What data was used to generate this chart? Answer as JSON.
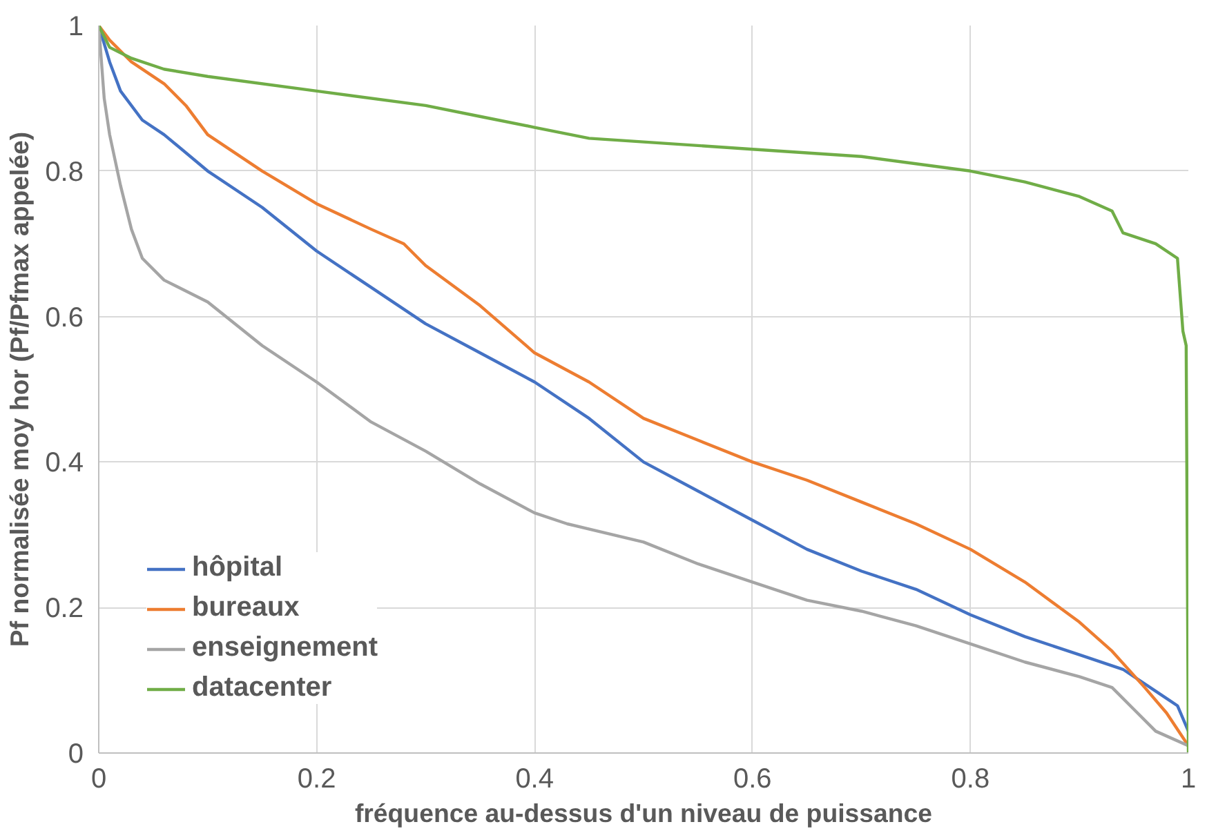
{
  "chart_data": {
    "type": "line",
    "xlabel": "fréquence au-dessus d'un niveau de puissance",
    "ylabel": "Pf normalisée moy hor (Pf/Pfmax appelée)",
    "xlim": [
      0,
      1
    ],
    "ylim": [
      0,
      1
    ],
    "xticks": [
      0,
      0.2,
      0.4,
      0.6,
      0.8,
      1
    ],
    "yticks": [
      0,
      0.2,
      0.4,
      0.6,
      0.8,
      1
    ],
    "grid": true,
    "legend": "bottom left",
    "line_style": "solid",
    "series": [
      {
        "name": "hôpital",
        "color": "#4472c4",
        "x": [
          0,
          0.01,
          0.02,
          0.04,
          0.06,
          0.1,
          0.15,
          0.2,
          0.25,
          0.3,
          0.35,
          0.4,
          0.45,
          0.5,
          0.55,
          0.6,
          0.65,
          0.7,
          0.75,
          0.8,
          0.85,
          0.9,
          0.94,
          0.97,
          0.99,
          1.0
        ],
        "values": [
          1,
          0.95,
          0.91,
          0.87,
          0.85,
          0.8,
          0.75,
          0.69,
          0.64,
          0.59,
          0.55,
          0.51,
          0.46,
          0.4,
          0.36,
          0.32,
          0.28,
          0.25,
          0.225,
          0.19,
          0.16,
          0.135,
          0.115,
          0.085,
          0.065,
          0.03
        ]
      },
      {
        "name": "bureaux",
        "color": "#ed7d31",
        "x": [
          0,
          0.01,
          0.03,
          0.06,
          0.08,
          0.1,
          0.15,
          0.2,
          0.25,
          0.28,
          0.3,
          0.35,
          0.4,
          0.45,
          0.5,
          0.55,
          0.6,
          0.65,
          0.7,
          0.75,
          0.8,
          0.85,
          0.9,
          0.93,
          0.96,
          0.98,
          1.0
        ],
        "values": [
          1,
          0.98,
          0.95,
          0.92,
          0.89,
          0.85,
          0.8,
          0.755,
          0.72,
          0.7,
          0.67,
          0.615,
          0.55,
          0.51,
          0.46,
          0.43,
          0.4,
          0.375,
          0.345,
          0.315,
          0.28,
          0.235,
          0.18,
          0.14,
          0.09,
          0.055,
          0.01
        ]
      },
      {
        "name": "enseignement",
        "color": "#a5a5a5",
        "x": [
          0,
          0.005,
          0.01,
          0.02,
          0.03,
          0.04,
          0.06,
          0.1,
          0.15,
          0.2,
          0.25,
          0.3,
          0.35,
          0.4,
          0.43,
          0.5,
          0.55,
          0.6,
          0.65,
          0.7,
          0.75,
          0.8,
          0.85,
          0.9,
          0.93,
          0.95,
          0.97,
          1.0
        ],
        "values": [
          1,
          0.9,
          0.85,
          0.78,
          0.72,
          0.68,
          0.65,
          0.62,
          0.56,
          0.51,
          0.455,
          0.415,
          0.37,
          0.33,
          0.315,
          0.29,
          0.26,
          0.235,
          0.21,
          0.195,
          0.175,
          0.15,
          0.125,
          0.105,
          0.09,
          0.06,
          0.03,
          0.01
        ]
      },
      {
        "name": "datacenter",
        "color": "#70ad47",
        "x": [
          0,
          0.01,
          0.03,
          0.06,
          0.1,
          0.2,
          0.3,
          0.35,
          0.4,
          0.45,
          0.5,
          0.6,
          0.7,
          0.8,
          0.85,
          0.9,
          0.93,
          0.94,
          0.97,
          0.99,
          0.995,
          0.998,
          1.0
        ],
        "values": [
          1,
          0.97,
          0.955,
          0.94,
          0.93,
          0.91,
          0.89,
          0.875,
          0.86,
          0.845,
          0.84,
          0.83,
          0.82,
          0.8,
          0.785,
          0.765,
          0.745,
          0.715,
          0.7,
          0.68,
          0.58,
          0.56,
          0
        ]
      }
    ]
  }
}
